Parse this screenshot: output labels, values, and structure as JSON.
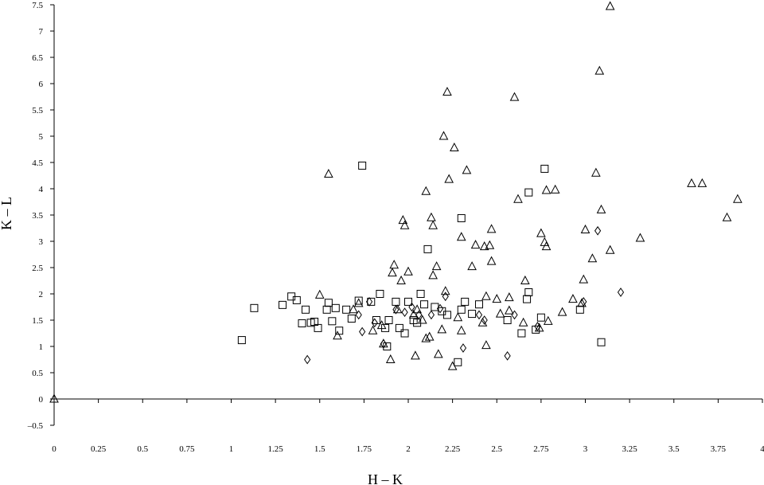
{
  "chart_data": {
    "type": "scatter",
    "xlabel": "H – K",
    "ylabel": "K – L",
    "xlim": [
      0,
      4
    ],
    "ylim": [
      -0.5,
      7.5
    ],
    "grid": false,
    "legend": "none",
    "x_ticks": [
      "0",
      "0.25",
      "0.5",
      "0.75",
      "1",
      "1.25",
      "1.5",
      "1.75",
      "2",
      "2.25",
      "2.5",
      "2.75",
      "3",
      "3.25",
      "3.5",
      "3.75",
      "4"
    ],
    "y_ticks": [
      "–0.5",
      "0",
      "0.5",
      "1",
      "1.5",
      "2",
      "2.5",
      "3",
      "3.5",
      "4",
      "4.5",
      "5",
      "5.5",
      "6",
      "6.5",
      "7",
      "7.5"
    ],
    "series": [
      {
        "marker": "square",
        "points": [
          [
            1.06,
            1.12
          ],
          [
            1.13,
            1.73
          ],
          [
            1.29,
            1.79
          ],
          [
            1.34,
            1.95
          ],
          [
            1.37,
            1.88
          ],
          [
            1.4,
            1.44
          ],
          [
            1.42,
            1.7
          ],
          [
            1.45,
            1.45
          ],
          [
            1.47,
            1.47
          ],
          [
            1.49,
            1.35
          ],
          [
            1.54,
            1.7
          ],
          [
            1.55,
            1.83
          ],
          [
            1.57,
            1.48
          ],
          [
            1.59,
            1.73
          ],
          [
            1.61,
            1.3
          ],
          [
            1.65,
            1.7
          ],
          [
            1.68,
            1.53
          ],
          [
            1.72,
            1.87
          ],
          [
            1.74,
            4.44
          ],
          [
            1.79,
            1.85
          ],
          [
            1.82,
            1.5
          ],
          [
            1.84,
            2.0
          ],
          [
            1.87,
            1.35
          ],
          [
            1.88,
            1.0
          ],
          [
            1.89,
            1.5
          ],
          [
            1.93,
            1.85
          ],
          [
            1.95,
            1.35
          ],
          [
            1.98,
            1.25
          ],
          [
            2.0,
            1.85
          ],
          [
            2.03,
            1.5
          ],
          [
            2.05,
            1.45
          ],
          [
            2.07,
            2.0
          ],
          [
            2.09,
            1.8
          ],
          [
            2.11,
            2.85
          ],
          [
            2.15,
            1.75
          ],
          [
            2.19,
            1.67
          ],
          [
            2.22,
            1.6
          ],
          [
            2.28,
            0.7
          ],
          [
            2.3,
            3.44
          ],
          [
            2.3,
            1.7
          ],
          [
            2.32,
            1.85
          ],
          [
            2.36,
            1.62
          ],
          [
            2.4,
            1.8
          ],
          [
            2.56,
            1.5
          ],
          [
            2.64,
            1.25
          ],
          [
            2.67,
            1.9
          ],
          [
            2.68,
            3.93
          ],
          [
            2.68,
            2.03
          ],
          [
            2.72,
            1.32
          ],
          [
            2.75,
            1.55
          ],
          [
            2.77,
            4.38
          ],
          [
            2.97,
            1.7
          ],
          [
            3.09,
            1.08
          ]
        ]
      },
      {
        "marker": "triangle",
        "points": [
          [
            0.0,
            0.0
          ],
          [
            1.5,
            1.98
          ],
          [
            1.55,
            4.28
          ],
          [
            1.6,
            1.2
          ],
          [
            1.69,
            1.7
          ],
          [
            1.72,
            1.82
          ],
          [
            1.8,
            1.3
          ],
          [
            1.85,
            1.4
          ],
          [
            1.86,
            1.05
          ],
          [
            1.9,
            0.75
          ],
          [
            1.91,
            2.4
          ],
          [
            1.92,
            2.55
          ],
          [
            1.94,
            1.7
          ],
          [
            1.96,
            2.25
          ],
          [
            1.97,
            3.4
          ],
          [
            1.98,
            3.3
          ],
          [
            2.0,
            2.42
          ],
          [
            2.03,
            1.6
          ],
          [
            2.04,
            0.82
          ],
          [
            2.05,
            1.7
          ],
          [
            2.08,
            1.5
          ],
          [
            2.1,
            1.15
          ],
          [
            2.1,
            3.95
          ],
          [
            2.12,
            1.18
          ],
          [
            2.13,
            3.45
          ],
          [
            2.14,
            3.3
          ],
          [
            2.14,
            2.35
          ],
          [
            2.16,
            2.52
          ],
          [
            2.17,
            0.85
          ],
          [
            2.19,
            1.32
          ],
          [
            2.2,
            5.0
          ],
          [
            2.21,
            2.05
          ],
          [
            2.22,
            5.84
          ],
          [
            2.23,
            4.18
          ],
          [
            2.25,
            0.62
          ],
          [
            2.26,
            4.78
          ],
          [
            2.28,
            1.55
          ],
          [
            2.3,
            3.08
          ],
          [
            2.3,
            1.3
          ],
          [
            2.33,
            4.35
          ],
          [
            2.36,
            2.52
          ],
          [
            2.38,
            2.93
          ],
          [
            2.42,
            1.45
          ],
          [
            2.43,
            2.9
          ],
          [
            2.44,
            1.02
          ],
          [
            2.44,
            1.95
          ],
          [
            2.46,
            2.92
          ],
          [
            2.47,
            3.23
          ],
          [
            2.47,
            2.62
          ],
          [
            2.5,
            1.9
          ],
          [
            2.52,
            1.62
          ],
          [
            2.57,
            1.68
          ],
          [
            2.57,
            1.93
          ],
          [
            2.6,
            5.74
          ],
          [
            2.62,
            3.8
          ],
          [
            2.65,
            1.45
          ],
          [
            2.66,
            2.25
          ],
          [
            2.74,
            1.35
          ],
          [
            2.75,
            3.15
          ],
          [
            2.77,
            2.98
          ],
          [
            2.78,
            2.9
          ],
          [
            2.79,
            1.48
          ],
          [
            2.78,
            3.97
          ],
          [
            2.83,
            3.98
          ],
          [
            2.87,
            1.65
          ],
          [
            2.93,
            1.9
          ],
          [
            2.98,
            1.82
          ],
          [
            2.99,
            2.27
          ],
          [
            3.0,
            3.22
          ],
          [
            3.04,
            2.67
          ],
          [
            3.06,
            4.3
          ],
          [
            3.08,
            6.24
          ],
          [
            3.09,
            3.6
          ],
          [
            3.14,
            7.47
          ],
          [
            3.14,
            2.83
          ],
          [
            3.31,
            3.06
          ],
          [
            3.6,
            4.1
          ],
          [
            3.66,
            4.1
          ],
          [
            3.8,
            3.45
          ],
          [
            3.86,
            3.8
          ]
        ]
      },
      {
        "marker": "diamond",
        "points": [
          [
            1.43,
            0.75
          ],
          [
            1.72,
            1.6
          ],
          [
            1.74,
            1.28
          ],
          [
            1.78,
            1.85
          ],
          [
            1.81,
            1.45
          ],
          [
            1.86,
            1.05
          ],
          [
            1.93,
            1.7
          ],
          [
            1.98,
            1.65
          ],
          [
            2.02,
            1.75
          ],
          [
            2.06,
            1.6
          ],
          [
            2.13,
            1.6
          ],
          [
            2.18,
            1.72
          ],
          [
            2.21,
            1.95
          ],
          [
            2.31,
            0.97
          ],
          [
            2.4,
            1.6
          ],
          [
            2.43,
            1.5
          ],
          [
            2.56,
            0.82
          ],
          [
            2.6,
            1.6
          ],
          [
            2.73,
            1.38
          ],
          [
            2.99,
            1.85
          ],
          [
            3.07,
            3.2
          ],
          [
            3.2,
            2.03
          ]
        ]
      }
    ]
  }
}
